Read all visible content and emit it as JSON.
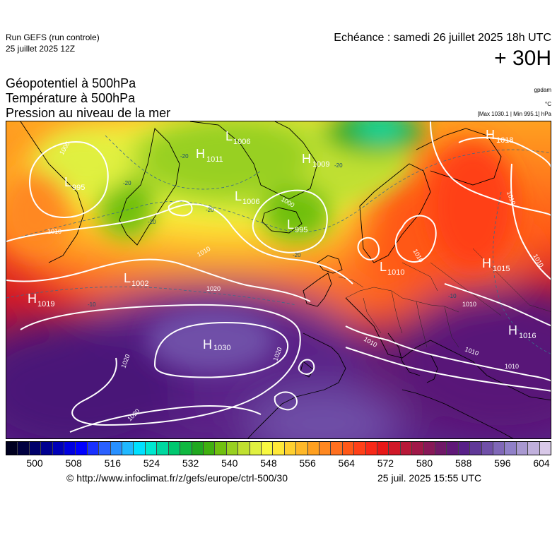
{
  "header": {
    "run_line1": "Run GEFS (run controle)",
    "run_line2": "25 juillet 2025 12Z",
    "echeance": "Echéance : samedi 26 juillet 2025 18h UTC",
    "leadtime": "+ 30H"
  },
  "parameters": {
    "line1": "Géopotentiel à 500hPa",
    "line2": "Température à 500hPa",
    "line3": "Pression au niveau de la mer"
  },
  "units": {
    "gpdam": "gpdam",
    "celsius": "°C",
    "hpa": "[Max 1030.1 | Min 995.1] hPa"
  },
  "pressure_centers": [
    {
      "type": "H",
      "value": "1030",
      "color": "#ffffff"
    },
    {
      "type": "H",
      "value": "1019",
      "color": "#ffffff"
    },
    {
      "type": "H",
      "value": "1018",
      "color": "#ffffff"
    },
    {
      "type": "H",
      "value": "1015",
      "color": "#ffffff"
    },
    {
      "type": "H",
      "value": "1016",
      "color": "#ffffff"
    },
    {
      "type": "H",
      "value": "1009",
      "color": "#ffffff"
    },
    {
      "type": "H",
      "value": "1011",
      "color": "#ffffff"
    },
    {
      "type": "L",
      "value": "995",
      "color": "#ffffff"
    },
    {
      "type": "L",
      "value": "995",
      "color": "#ffffff"
    },
    {
      "type": "L",
      "value": "1002",
      "color": "#ffffff"
    },
    {
      "type": "L",
      "value": "1006",
      "color": "#ffffff"
    },
    {
      "type": "L",
      "value": "1006",
      "color": "#ffffff"
    },
    {
      "type": "L",
      "value": "1010",
      "color": "#ffffff"
    }
  ],
  "isobar_labels": [
    "1010",
    "1010",
    "1010",
    "1010",
    "1010",
    "1010",
    "1020",
    "1020",
    "1020",
    "1020",
    "1000",
    "1000",
    "1010",
    "1010",
    "1010"
  ],
  "temperature_labels": [
    "-20",
    "-20",
    "-20",
    "-20",
    "-20",
    "-20",
    "-10",
    "-10"
  ],
  "colorbar": {
    "colors": [
      "#000020",
      "#000040",
      "#00006a",
      "#000090",
      "#0000b8",
      "#0000e0",
      "#0000ff",
      "#1830ff",
      "#2a60ff",
      "#2890ff",
      "#20b8ff",
      "#00e0ff",
      "#00e8d0",
      "#00d8a0",
      "#00c870",
      "#10b840",
      "#20a820",
      "#40b010",
      "#70c010",
      "#98d020",
      "#c0e030",
      "#e0f040",
      "#f8f840",
      "#ffe838",
      "#ffd030",
      "#ffb828",
      "#ffa020",
      "#ff8820",
      "#ff7020",
      "#ff5818",
      "#ff4018",
      "#f82818",
      "#e81818",
      "#d01828",
      "#b81838",
      "#a01848",
      "#881858",
      "#701868",
      "#601878",
      "#582088",
      "#603898",
      "#7050a8",
      "#8068b8",
      "#9080c8",
      "#a898d0",
      "#c0b0dc",
      "#d8c8e8"
    ],
    "ticks": [
      "500",
      "508",
      "516",
      "524",
      "532",
      "540",
      "548",
      "556",
      "564",
      "572",
      "580",
      "588",
      "596",
      "604"
    ]
  },
  "footer": {
    "copyright": "© http://www.infoclimat.fr/z/gefs/europe/ctrl-500/30",
    "timestamp": "25 juil. 2025 15:55 UTC"
  }
}
